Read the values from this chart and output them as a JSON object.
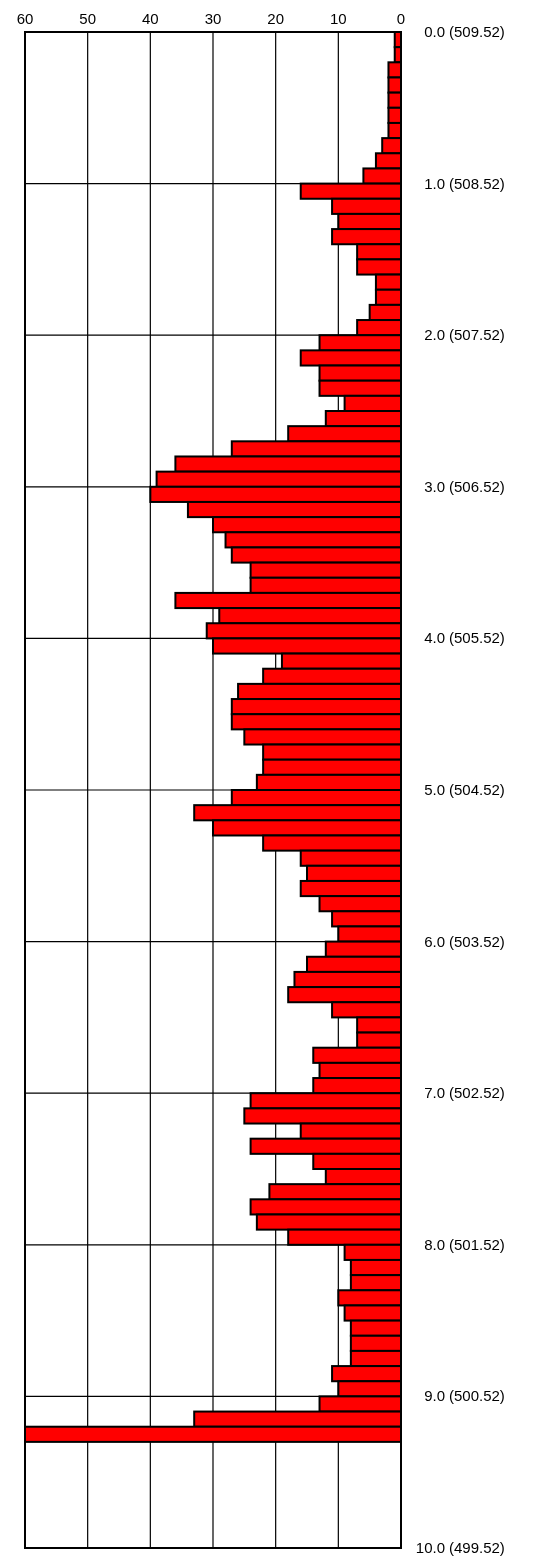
{
  "chart_data": {
    "type": "histogram",
    "orientation": "horizontal",
    "color": "#ff0000",
    "bins": [
      0,
      0.1,
      0.2,
      0.3,
      0.4,
      0.5,
      0.6,
      0.7,
      0.8,
      0.9,
      1.0,
      1.1,
      1.2,
      1.3,
      1.4,
      1.5,
      1.6,
      1.7,
      1.8,
      1.9,
      2.0,
      2.1,
      2.2,
      2.3,
      2.4,
      2.5,
      2.6,
      2.7,
      2.8,
      2.9,
      3.0,
      3.1,
      3.2,
      3.3,
      3.4,
      3.5,
      3.6,
      3.7,
      3.8,
      3.9,
      4.0,
      4.1,
      4.2,
      4.3,
      4.4,
      4.5,
      4.6,
      4.7,
      4.8,
      4.9,
      5.0,
      5.1,
      5.2,
      5.3,
      5.4,
      5.5,
      5.6,
      5.7,
      5.8,
      5.9,
      6.0,
      6.1,
      6.2,
      6.3,
      6.4,
      6.5,
      6.6,
      6.7,
      6.8,
      6.9,
      7.0,
      7.1,
      7.2,
      7.3,
      7.4,
      7.5,
      7.6,
      7.7,
      7.8,
      7.9,
      8.0,
      8.1,
      8.2,
      8.3,
      8.4,
      8.5,
      8.6,
      8.7,
      8.8,
      8.9,
      9.0,
      9.1,
      9.2,
      9.3
    ],
    "values": [
      1,
      1,
      2,
      2,
      2,
      2,
      2,
      3,
      4,
      6,
      16,
      11,
      10,
      11,
      7,
      7,
      4,
      4,
      5,
      7,
      13,
      16,
      13,
      13,
      9,
      12,
      18,
      27,
      36,
      39,
      40,
      34,
      30,
      28,
      27,
      24,
      24,
      36,
      29,
      31,
      30,
      19,
      22,
      26,
      27,
      27,
      25,
      22,
      22,
      23,
      27,
      33,
      30,
      22,
      16,
      15,
      16,
      13,
      11,
      10,
      12,
      15,
      17,
      18,
      11,
      7,
      7,
      14,
      13,
      14,
      24,
      25,
      16,
      24,
      14,
      12,
      21,
      24,
      23,
      18,
      9,
      8,
      8,
      10,
      9,
      8,
      8,
      8,
      11,
      10,
      13,
      33,
      60
    ],
    "xlim": [
      60,
      0
    ],
    "xticks": [
      60,
      50,
      40,
      30,
      20,
      10,
      0
    ],
    "ylim": [
      10,
      0
    ],
    "yticks": [
      {
        "value": 0,
        "label": "0.0"
      },
      {
        "value": 1,
        "label": "1.0"
      },
      {
        "value": 2,
        "label": "2.0"
      },
      {
        "value": 3,
        "label": "3.0"
      },
      {
        "value": 4,
        "label": "4.0"
      },
      {
        "value": 5,
        "label": "5.0"
      },
      {
        "value": 6,
        "label": "6.0"
      },
      {
        "value": 7,
        "label": "7.0"
      },
      {
        "value": 8,
        "label": "8.0"
      },
      {
        "value": 9,
        "label": "9.0"
      },
      {
        "value": 10,
        "label": "10.0"
      }
    ],
    "y2lim": [
      499.52,
      509.52
    ],
    "y2ticks": [
      {
        "value": 509.52,
        "label": "(509.52)"
      },
      {
        "value": 508.52,
        "label": "(508.52)"
      },
      {
        "value": 507.52,
        "label": "(507.52)"
      },
      {
        "value": 506.52,
        "label": "(506.52)"
      },
      {
        "value": 505.52,
        "label": "(505.52)"
      },
      {
        "value": 504.52,
        "label": "(504.52)"
      },
      {
        "value": 503.52,
        "label": "(503.52)"
      },
      {
        "value": 502.52,
        "label": "(502.52)"
      },
      {
        "value": 501.52,
        "label": "(501.52)"
      },
      {
        "value": 500.52,
        "label": "(500.52)"
      },
      {
        "value": 499.52,
        "label": "(499.52)"
      }
    ],
    "grid": true
  }
}
